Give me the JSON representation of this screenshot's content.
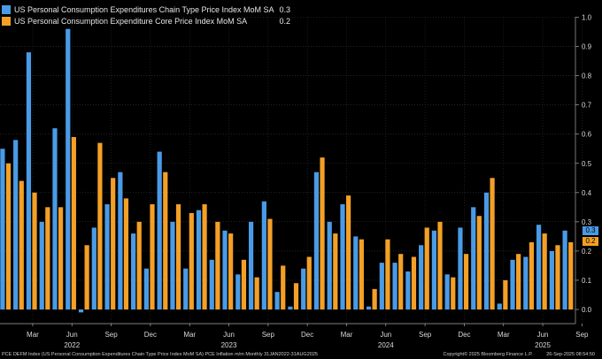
{
  "legend": {
    "items": [
      {
        "label": "US Personal Consumption Expenditures Chain Type Price Index MoM SA",
        "value": "0.3",
        "color": "#4a9be6"
      },
      {
        "label": "US Personal Consumption Expenditure Core Price Index MoM SA",
        "value": "0.2",
        "color": "#f4a026"
      }
    ]
  },
  "footer": {
    "left": "PCE DEFM Index (US Personal Consumption Expenditures Chain Type Price Index MoM SA) PCE Inflation m/m  Monthly 31JAN2022-31AUG2025",
    "copyright": "Copyright© 2025 Bloomberg Finance L.P.",
    "timestamp": "26-Sep-2025 08:54:50"
  },
  "last_values": [
    "0.3",
    "0.2"
  ],
  "chart_data": {
    "type": "bar",
    "categories": [
      "Jan 2022",
      "Feb 2022",
      "Mar 2022",
      "Apr 2022",
      "May 2022",
      "Jun 2022",
      "Jul 2022",
      "Aug 2022",
      "Sep 2022",
      "Oct 2022",
      "Nov 2022",
      "Dec 2022",
      "Jan 2023",
      "Feb 2023",
      "Mar 2023",
      "Apr 2023",
      "May 2023",
      "Jun 2023",
      "Jul 2023",
      "Aug 2023",
      "Sep 2023",
      "Oct 2023",
      "Nov 2023",
      "Dec 2023",
      "Jan 2024",
      "Feb 2024",
      "Mar 2024",
      "Apr 2024",
      "May 2024",
      "Jun 2024",
      "Jul 2024",
      "Aug 2024",
      "Sep 2024",
      "Oct 2024",
      "Nov 2024",
      "Dec 2024",
      "Jan 2025",
      "Feb 2025",
      "Mar 2025",
      "Apr 2025",
      "May 2025",
      "Jun 2025",
      "Jul 2025",
      "Aug 2025"
    ],
    "series": [
      {
        "name": "US Personal Consumption Expenditures Chain Type Price Index MoM SA",
        "color": "#4a9be6",
        "values": [
          0.55,
          0.58,
          0.88,
          0.3,
          0.62,
          0.96,
          -0.01,
          0.28,
          0.36,
          0.47,
          0.26,
          0.14,
          0.54,
          0.3,
          0.14,
          0.34,
          0.17,
          0.27,
          0.12,
          0.3,
          0.37,
          0.06,
          0.01,
          0.14,
          0.47,
          0.3,
          0.36,
          0.25,
          0.01,
          0.16,
          0.16,
          0.13,
          0.22,
          0.27,
          0.12,
          0.28,
          0.35,
          0.4,
          0.02,
          0.17,
          0.18,
          0.29,
          0.2,
          0.27
        ]
      },
      {
        "name": "US Personal Consumption Expenditure Core Price Index MoM SA",
        "color": "#f4a026",
        "values": [
          0.5,
          0.44,
          0.4,
          0.35,
          0.35,
          0.59,
          0.22,
          0.57,
          0.45,
          0.38,
          0.3,
          0.36,
          0.47,
          0.36,
          0.33,
          0.36,
          0.3,
          0.26,
          0.17,
          0.11,
          0.31,
          0.15,
          0.09,
          0.18,
          0.52,
          0.26,
          0.39,
          0.24,
          0.07,
          0.24,
          0.19,
          0.18,
          0.28,
          0.3,
          0.11,
          0.19,
          0.32,
          0.45,
          0.1,
          0.19,
          0.23,
          0.26,
          0.22,
          0.23
        ]
      }
    ],
    "x_ticks": [
      {
        "label": "Mar",
        "index": 2
      },
      {
        "label": "Jun",
        "index": 5
      },
      {
        "label": "Sep",
        "index": 8
      },
      {
        "label": "Dec",
        "index": 11
      },
      {
        "label": "Mar",
        "index": 14
      },
      {
        "label": "Jun",
        "index": 17
      },
      {
        "label": "Sep",
        "index": 20
      },
      {
        "label": "Dec",
        "index": 23
      },
      {
        "label": "Mar",
        "index": 26
      },
      {
        "label": "Jun",
        "index": 29
      },
      {
        "label": "Sep",
        "index": 32
      },
      {
        "label": "Dec",
        "index": 35
      },
      {
        "label": "Mar",
        "index": 38
      },
      {
        "label": "Jun",
        "index": 41
      },
      {
        "label": "Sep",
        "index": 44
      }
    ],
    "year_labels": [
      {
        "label": "2022",
        "index": 5
      },
      {
        "label": "2023",
        "index": 17
      },
      {
        "label": "2024",
        "index": 29
      },
      {
        "label": "2025",
        "index": 41
      }
    ],
    "y_ticks": [
      "0.0",
      "0.1",
      "0.2",
      "0.3",
      "0.4",
      "0.5",
      "0.6",
      "0.7",
      "0.8",
      "0.9",
      "1.0"
    ],
    "ylim": [
      -0.02,
      1.0
    ],
    "grid": true,
    "legend_position": "top-left"
  }
}
